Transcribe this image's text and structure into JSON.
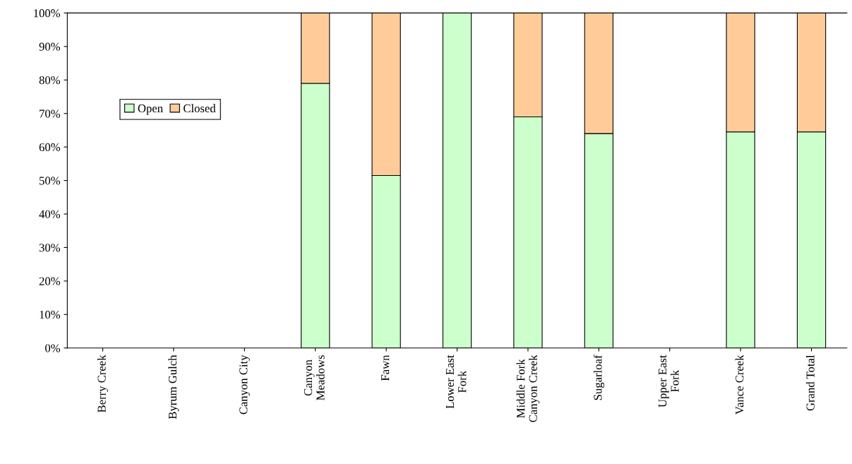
{
  "chart_data": {
    "type": "bar",
    "stacked": true,
    "categories": [
      "Berry Creek",
      "Byrum Gulch",
      "Canyon City",
      "Canyon\nMeadows",
      "Fawn",
      "Lower East\nFork",
      "Middle Fork\nCanyon Creek",
      "Sugarloaf",
      "Upper East\nFork",
      "Vance Creek",
      "Grand Total"
    ],
    "series": [
      {
        "name": "Open",
        "color": "#ccffcc",
        "values": [
          null,
          null,
          null,
          79,
          51.5,
          100,
          69,
          64,
          null,
          64.5,
          64.5
        ]
      },
      {
        "name": "Closed",
        "color": "#ffcc99",
        "values": [
          null,
          null,
          null,
          21,
          48.5,
          null,
          31,
          36,
          null,
          35.5,
          35.5
        ]
      }
    ],
    "ylim": [
      0,
      100
    ],
    "yticks": [
      {
        "value": 0,
        "label": "0%"
      },
      {
        "value": 10,
        "label": "10%"
      },
      {
        "value": 20,
        "label": "20%"
      },
      {
        "value": 30,
        "label": "30%"
      },
      {
        "value": 40,
        "label": "40%"
      },
      {
        "value": 50,
        "label": "50%"
      },
      {
        "value": 60,
        "label": "60%"
      },
      {
        "value": 70,
        "label": "70%"
      },
      {
        "value": 80,
        "label": "80%"
      },
      {
        "value": 90,
        "label": "90%"
      },
      {
        "value": 100,
        "label": "100%"
      }
    ],
    "grid": false,
    "legend": "left"
  }
}
